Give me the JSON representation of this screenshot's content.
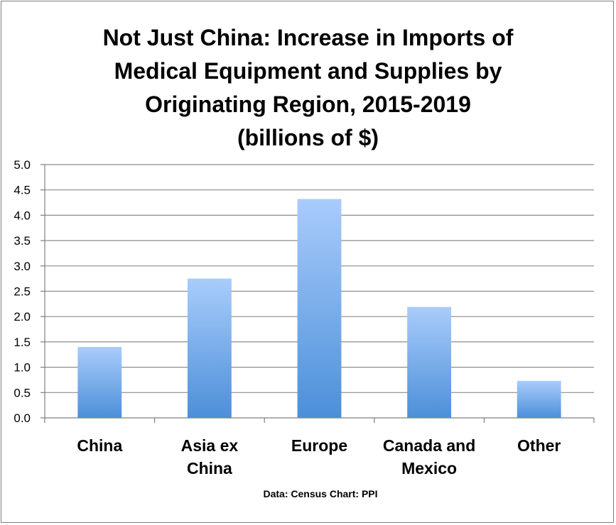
{
  "chart_data": {
    "type": "bar",
    "title_lines": [
      "Not Just China: Increase in Imports of",
      "Medical Equipment and Supplies by",
      "Originating Region, 2015-2019",
      "(billions of $)"
    ],
    "categories": [
      [
        "China"
      ],
      [
        "Asia ex",
        "China"
      ],
      [
        "Europe"
      ],
      [
        "Canada and",
        "Mexico"
      ],
      [
        "Other"
      ]
    ],
    "values": [
      1.4,
      2.75,
      4.32,
      2.19,
      0.73
    ],
    "ylim": [
      0,
      5
    ],
    "ytick_step": 0.5,
    "yticks": [
      "0.0",
      "0.5",
      "1.0",
      "1.5",
      "2.0",
      "2.5",
      "3.0",
      "3.5",
      "4.0",
      "4.5",
      "5.0"
    ],
    "grid": true,
    "bar_color_top": "#a9ccfb",
    "bar_color_bottom": "#4c8fd9",
    "source_note": "Data: Census Chart: PPI"
  }
}
